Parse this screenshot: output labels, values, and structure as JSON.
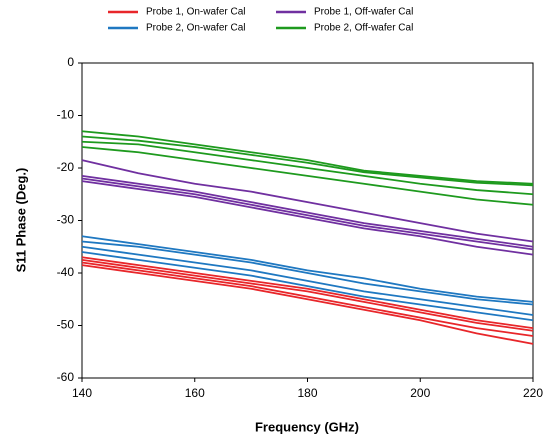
{
  "chart_data": {
    "type": "line",
    "x_label": "Frequency (GHz)",
    "y_label": "S11 Phase (Deg.)",
    "x": [
      140,
      150,
      160,
      170,
      180,
      190,
      200,
      210,
      220
    ],
    "xlim": [
      140,
      220
    ],
    "xticks": [
      140,
      160,
      180,
      200,
      220
    ],
    "ylim": [
      -60,
      0
    ],
    "yticks": [
      0,
      -10,
      -20,
      -30,
      -40,
      -50,
      -60
    ],
    "grid": false,
    "series": [
      {
        "name": "Probe 1, On-wafer Cal",
        "color": "#e8262a",
        "values": [
          [
            -37,
            -38.5,
            -40,
            -41.5,
            -43,
            -45,
            -47,
            -49,
            -50.5
          ],
          [
            -37.5,
            -39,
            -40.5,
            -42,
            -43.5,
            -45.5,
            -47.5,
            -49.5,
            -51
          ],
          [
            -38,
            -39.5,
            -41,
            -42.5,
            -44.5,
            -46.5,
            -48.5,
            -50.5,
            -52
          ],
          [
            -38.5,
            -40,
            -41.5,
            -43,
            -45,
            -47,
            -49,
            -51.5,
            -53.5
          ]
        ]
      },
      {
        "name": "Probe 2, On-wafer Cal",
        "color": "#1f78c1",
        "values": [
          [
            -33,
            -34.5,
            -36,
            -37.5,
            -39.5,
            -41,
            -43,
            -44.5,
            -45.5
          ],
          [
            -34,
            -35,
            -36.5,
            -38,
            -40,
            -42,
            -43.5,
            -45,
            -46
          ],
          [
            -35,
            -36.5,
            -38,
            -39.5,
            -41.5,
            -43.5,
            -45,
            -46.5,
            -48
          ],
          [
            -36,
            -37.5,
            -39,
            -40.5,
            -42.5,
            -44.5,
            -46,
            -47.5,
            -49
          ]
        ]
      },
      {
        "name": "Probe 1, Off-wafer Cal",
        "color": "#7030a0",
        "values": [
          [
            -18.5,
            -21,
            -23,
            -24.5,
            -26.5,
            -28.5,
            -30.5,
            -32.5,
            -34
          ],
          [
            -21.5,
            -23,
            -24.5,
            -26.5,
            -28.5,
            -30.5,
            -32,
            -33.5,
            -35
          ],
          [
            -22,
            -23.5,
            -25,
            -27,
            -29,
            -31,
            -32.5,
            -34,
            -35.5
          ],
          [
            -22.5,
            -24,
            -25.5,
            -27.5,
            -29.5,
            -31.5,
            -33,
            -35,
            -36.5
          ]
        ]
      },
      {
        "name": "Probe 2, Off-wafer Cal",
        "color": "#1e9a1e",
        "values": [
          [
            -13,
            -14,
            -15.5,
            -17,
            -18.5,
            -20.5,
            -21.5,
            -22.5,
            -23
          ],
          [
            -14,
            -14.8,
            -16,
            -17.5,
            -19,
            -20.8,
            -21.8,
            -22.8,
            -23.3
          ],
          [
            -15,
            -15.5,
            -17,
            -18.5,
            -20,
            -21.5,
            -23,
            -24.2,
            -25
          ],
          [
            -16,
            -17,
            -18.5,
            -20,
            -21.5,
            -23,
            -24.5,
            -26,
            -27
          ]
        ]
      }
    ]
  }
}
